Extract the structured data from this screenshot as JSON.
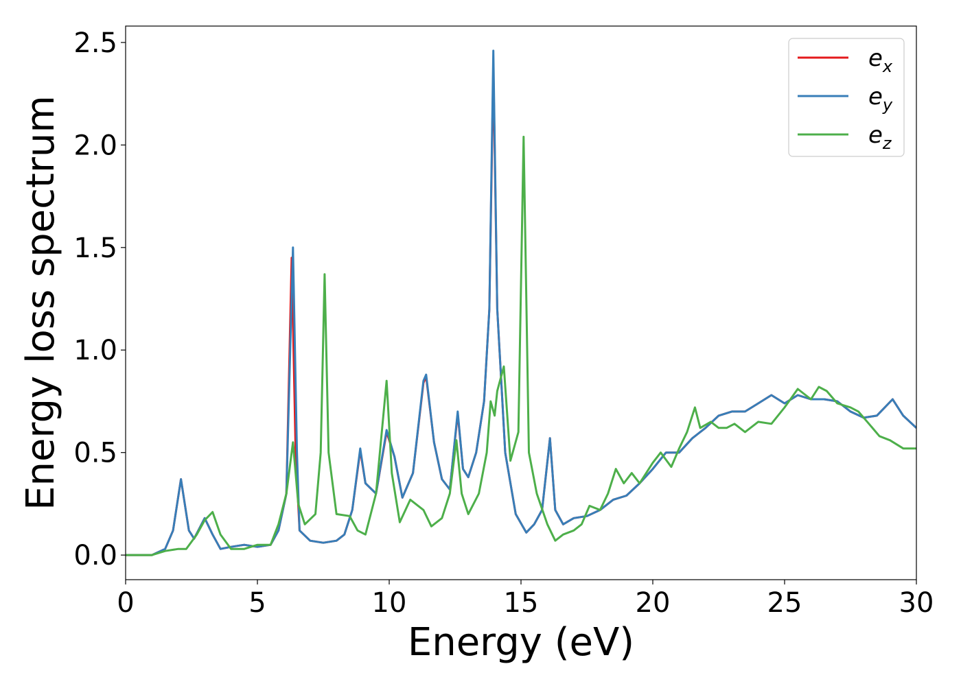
{
  "chart_data": {
    "type": "line",
    "title": "",
    "xlabel": "Energy (eV)",
    "ylabel": "Energy loss spectrum",
    "xlim": [
      0,
      30
    ],
    "ylim": [
      -0.12,
      2.58
    ],
    "xticks": [
      0,
      5,
      10,
      15,
      20,
      25,
      30
    ],
    "xtick_labels": [
      "0",
      "5",
      "10",
      "15",
      "20",
      "25",
      "30"
    ],
    "yticks": [
      0.0,
      0.5,
      1.0,
      1.5,
      2.0,
      2.5
    ],
    "ytick_labels": [
      "0.0",
      "0.5",
      "1.0",
      "1.5",
      "2.0",
      "2.5"
    ],
    "grid": false,
    "legend": {
      "placement": "top-right"
    },
    "series": [
      {
        "name": "e_x",
        "legend_base": "e",
        "legend_sub": "x",
        "color": "#e41a1c",
        "points": [
          [
            0,
            0
          ],
          [
            1,
            0.0
          ],
          [
            1.5,
            0.03
          ],
          [
            1.8,
            0.12
          ],
          [
            2.1,
            0.37
          ],
          [
            2.4,
            0.12
          ],
          [
            2.6,
            0.08
          ],
          [
            3.0,
            0.18
          ],
          [
            3.3,
            0.1
          ],
          [
            3.6,
            0.03
          ],
          [
            4.0,
            0.04
          ],
          [
            4.5,
            0.05
          ],
          [
            5.0,
            0.04
          ],
          [
            5.5,
            0.05
          ],
          [
            5.8,
            0.12
          ],
          [
            6.1,
            0.3
          ],
          [
            6.3,
            1.45
          ],
          [
            6.45,
            0.5
          ],
          [
            6.6,
            0.12
          ],
          [
            7.0,
            0.07
          ],
          [
            7.5,
            0.06
          ],
          [
            8.0,
            0.07
          ],
          [
            8.3,
            0.1
          ],
          [
            8.6,
            0.22
          ],
          [
            8.9,
            0.51
          ],
          [
            9.1,
            0.35
          ],
          [
            9.5,
            0.3
          ],
          [
            9.9,
            0.6
          ],
          [
            10.2,
            0.48
          ],
          [
            10.5,
            0.28
          ],
          [
            10.9,
            0.4
          ],
          [
            11.3,
            0.84
          ],
          [
            11.4,
            0.87
          ],
          [
            11.7,
            0.55
          ],
          [
            12.0,
            0.37
          ],
          [
            12.3,
            0.32
          ],
          [
            12.6,
            0.69
          ],
          [
            12.8,
            0.42
          ],
          [
            13.0,
            0.38
          ],
          [
            13.3,
            0.5
          ],
          [
            13.6,
            0.75
          ],
          [
            13.8,
            1.2
          ],
          [
            13.95,
            2.38
          ],
          [
            14.1,
            1.2
          ],
          [
            14.4,
            0.5
          ],
          [
            14.8,
            0.2
          ],
          [
            15.2,
            0.11
          ],
          [
            15.5,
            0.15
          ],
          [
            15.8,
            0.22
          ],
          [
            16.1,
            0.57
          ],
          [
            16.3,
            0.22
          ],
          [
            16.6,
            0.15
          ],
          [
            17.0,
            0.18
          ],
          [
            17.5,
            0.19
          ],
          [
            18.0,
            0.22
          ],
          [
            18.5,
            0.27
          ],
          [
            19.0,
            0.29
          ],
          [
            19.5,
            0.35
          ],
          [
            20.0,
            0.42
          ],
          [
            20.5,
            0.5
          ],
          [
            21.0,
            0.5
          ],
          [
            21.5,
            0.57
          ],
          [
            22.0,
            0.62
          ],
          [
            22.5,
            0.68
          ],
          [
            23.0,
            0.7
          ],
          [
            23.5,
            0.7
          ],
          [
            24.0,
            0.74
          ],
          [
            24.5,
            0.78
          ],
          [
            25.0,
            0.74
          ],
          [
            25.5,
            0.78
          ],
          [
            26.0,
            0.76
          ],
          [
            26.5,
            0.76
          ],
          [
            27.0,
            0.75
          ],
          [
            27.5,
            0.7
          ],
          [
            28.0,
            0.67
          ],
          [
            28.5,
            0.68
          ],
          [
            29.1,
            0.76
          ],
          [
            29.5,
            0.68
          ],
          [
            30.0,
            0.62
          ]
        ]
      },
      {
        "name": "e_y",
        "legend_base": "e",
        "legend_sub": "y",
        "color": "#377eb8",
        "points": [
          [
            0,
            0
          ],
          [
            1,
            0.0
          ],
          [
            1.5,
            0.03
          ],
          [
            1.8,
            0.12
          ],
          [
            2.1,
            0.37
          ],
          [
            2.4,
            0.12
          ],
          [
            2.6,
            0.08
          ],
          [
            3.0,
            0.18
          ],
          [
            3.3,
            0.1
          ],
          [
            3.6,
            0.03
          ],
          [
            4.0,
            0.04
          ],
          [
            4.5,
            0.05
          ],
          [
            5.0,
            0.04
          ],
          [
            5.5,
            0.05
          ],
          [
            5.8,
            0.12
          ],
          [
            6.1,
            0.3
          ],
          [
            6.35,
            1.5
          ],
          [
            6.5,
            0.5
          ],
          [
            6.6,
            0.12
          ],
          [
            7.0,
            0.07
          ],
          [
            7.5,
            0.06
          ],
          [
            8.0,
            0.07
          ],
          [
            8.3,
            0.1
          ],
          [
            8.6,
            0.22
          ],
          [
            8.9,
            0.52
          ],
          [
            9.1,
            0.35
          ],
          [
            9.5,
            0.3
          ],
          [
            9.9,
            0.61
          ],
          [
            10.2,
            0.48
          ],
          [
            10.5,
            0.28
          ],
          [
            10.9,
            0.4
          ],
          [
            11.3,
            0.85
          ],
          [
            11.4,
            0.88
          ],
          [
            11.7,
            0.55
          ],
          [
            12.0,
            0.37
          ],
          [
            12.3,
            0.32
          ],
          [
            12.6,
            0.7
          ],
          [
            12.8,
            0.42
          ],
          [
            13.0,
            0.38
          ],
          [
            13.3,
            0.5
          ],
          [
            13.6,
            0.75
          ],
          [
            13.8,
            1.2
          ],
          [
            13.95,
            2.46
          ],
          [
            14.1,
            1.2
          ],
          [
            14.4,
            0.5
          ],
          [
            14.8,
            0.2
          ],
          [
            15.2,
            0.11
          ],
          [
            15.5,
            0.15
          ],
          [
            15.8,
            0.22
          ],
          [
            16.1,
            0.57
          ],
          [
            16.3,
            0.22
          ],
          [
            16.6,
            0.15
          ],
          [
            17.0,
            0.18
          ],
          [
            17.5,
            0.19
          ],
          [
            18.0,
            0.22
          ],
          [
            18.5,
            0.27
          ],
          [
            19.0,
            0.29
          ],
          [
            19.5,
            0.35
          ],
          [
            20.0,
            0.42
          ],
          [
            20.5,
            0.5
          ],
          [
            21.0,
            0.5
          ],
          [
            21.5,
            0.57
          ],
          [
            22.0,
            0.62
          ],
          [
            22.5,
            0.68
          ],
          [
            23.0,
            0.7
          ],
          [
            23.5,
            0.7
          ],
          [
            24.0,
            0.74
          ],
          [
            24.5,
            0.78
          ],
          [
            25.0,
            0.74
          ],
          [
            25.5,
            0.78
          ],
          [
            26.0,
            0.76
          ],
          [
            26.5,
            0.76
          ],
          [
            27.0,
            0.75
          ],
          [
            27.5,
            0.7
          ],
          [
            28.0,
            0.67
          ],
          [
            28.5,
            0.68
          ],
          [
            29.1,
            0.76
          ],
          [
            29.5,
            0.68
          ],
          [
            30.0,
            0.62
          ]
        ]
      },
      {
        "name": "e_z",
        "legend_base": "e",
        "legend_sub": "z",
        "color": "#4daf4a",
        "points": [
          [
            0,
            0
          ],
          [
            1,
            0.0
          ],
          [
            1.5,
            0.02
          ],
          [
            2.0,
            0.03
          ],
          [
            2.3,
            0.03
          ],
          [
            2.7,
            0.1
          ],
          [
            3.0,
            0.17
          ],
          [
            3.3,
            0.21
          ],
          [
            3.6,
            0.1
          ],
          [
            4.0,
            0.03
          ],
          [
            4.5,
            0.03
          ],
          [
            5.0,
            0.05
          ],
          [
            5.5,
            0.05
          ],
          [
            5.8,
            0.15
          ],
          [
            6.1,
            0.3
          ],
          [
            6.35,
            0.55
          ],
          [
            6.55,
            0.25
          ],
          [
            6.8,
            0.15
          ],
          [
            7.2,
            0.2
          ],
          [
            7.4,
            0.5
          ],
          [
            7.55,
            1.37
          ],
          [
            7.7,
            0.5
          ],
          [
            8.0,
            0.2
          ],
          [
            8.5,
            0.19
          ],
          [
            8.8,
            0.12
          ],
          [
            9.1,
            0.1
          ],
          [
            9.5,
            0.3
          ],
          [
            9.9,
            0.85
          ],
          [
            10.1,
            0.4
          ],
          [
            10.4,
            0.16
          ],
          [
            10.8,
            0.27
          ],
          [
            11.1,
            0.24
          ],
          [
            11.3,
            0.22
          ],
          [
            11.6,
            0.14
          ],
          [
            12.0,
            0.18
          ],
          [
            12.3,
            0.3
          ],
          [
            12.55,
            0.56
          ],
          [
            12.75,
            0.3
          ],
          [
            13.0,
            0.2
          ],
          [
            13.4,
            0.3
          ],
          [
            13.7,
            0.5
          ],
          [
            13.85,
            0.75
          ],
          [
            14.0,
            0.68
          ],
          [
            14.1,
            0.8
          ],
          [
            14.35,
            0.92
          ],
          [
            14.6,
            0.46
          ],
          [
            14.9,
            0.6
          ],
          [
            15.1,
            2.04
          ],
          [
            15.3,
            0.5
          ],
          [
            15.6,
            0.3
          ],
          [
            16.0,
            0.15
          ],
          [
            16.3,
            0.07
          ],
          [
            16.6,
            0.1
          ],
          [
            17.0,
            0.12
          ],
          [
            17.3,
            0.15
          ],
          [
            17.6,
            0.24
          ],
          [
            18.0,
            0.22
          ],
          [
            18.3,
            0.3
          ],
          [
            18.6,
            0.42
          ],
          [
            18.9,
            0.35
          ],
          [
            19.2,
            0.4
          ],
          [
            19.5,
            0.35
          ],
          [
            20.0,
            0.45
          ],
          [
            20.3,
            0.5
          ],
          [
            20.7,
            0.43
          ],
          [
            21.0,
            0.52
          ],
          [
            21.3,
            0.6
          ],
          [
            21.6,
            0.72
          ],
          [
            21.8,
            0.62
          ],
          [
            22.2,
            0.65
          ],
          [
            22.5,
            0.62
          ],
          [
            22.8,
            0.62
          ],
          [
            23.1,
            0.64
          ],
          [
            23.5,
            0.6
          ],
          [
            24.0,
            0.65
          ],
          [
            24.5,
            0.64
          ],
          [
            25.0,
            0.72
          ],
          [
            25.5,
            0.81
          ],
          [
            26.0,
            0.76
          ],
          [
            26.3,
            0.82
          ],
          [
            26.6,
            0.8
          ],
          [
            27.0,
            0.74
          ],
          [
            27.5,
            0.72
          ],
          [
            27.8,
            0.7
          ],
          [
            28.2,
            0.64
          ],
          [
            28.6,
            0.58
          ],
          [
            29.0,
            0.56
          ],
          [
            29.5,
            0.52
          ],
          [
            30.0,
            0.52
          ]
        ]
      }
    ]
  }
}
